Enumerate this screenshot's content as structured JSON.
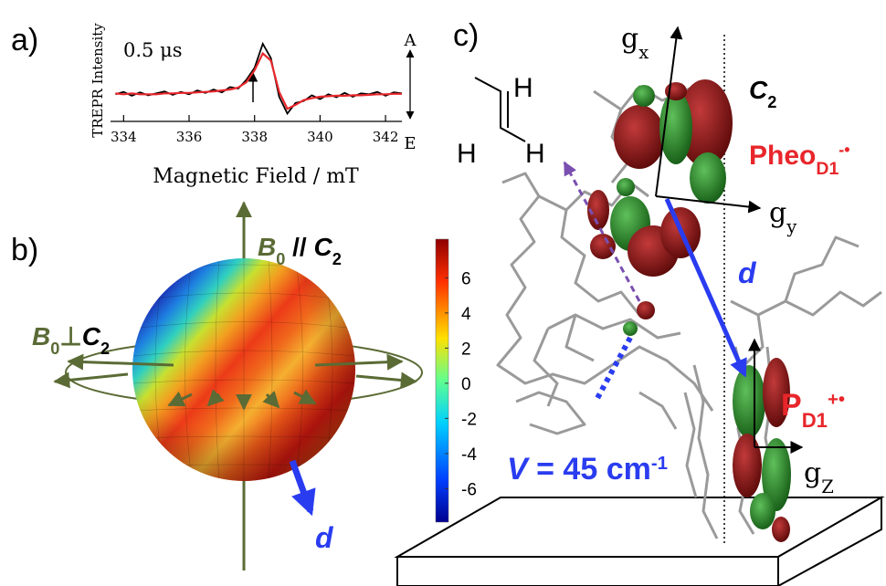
{
  "panel_labels": [
    "a)",
    "b)",
    "c)"
  ],
  "chart_data": {
    "type": "line",
    "y_label": "TREPR Intensity",
    "x_label": "Magnetic Field / mT",
    "annotation": "0.5 μs",
    "right_labels": [
      "A",
      "E"
    ],
    "x": [
      333.75,
      334,
      334.25,
      334.5,
      334.75,
      335,
      335.25,
      335.5,
      335.75,
      336,
      336.25,
      336.5,
      336.75,
      337,
      337.25,
      337.5,
      337.75,
      338,
      338.25,
      338.5,
      338.75,
      339,
      339.25,
      339.5,
      339.75,
      340,
      340.25,
      340.5,
      340.75,
      341,
      341.25,
      341.5,
      341.75,
      342,
      342.25,
      342.5
    ],
    "xlim": [
      333.6,
      342.5
    ],
    "xticks": [
      334,
      336,
      338,
      340,
      342
    ],
    "ylim": [
      -0.6,
      1.2
    ],
    "series": [
      {
        "color": "#000000",
        "values": [
          0.0,
          0.05,
          -0.03,
          0.04,
          -0.02,
          0.02,
          0.06,
          -0.01,
          0.05,
          0.0,
          0.08,
          0.03,
          0.1,
          0.04,
          0.15,
          0.12,
          0.3,
          0.55,
          1.05,
          0.75,
          -0.05,
          -0.4,
          -0.18,
          -0.14,
          -0.02,
          -0.1,
          0.0,
          -0.06,
          0.03,
          -0.05,
          0.02,
          0.0,
          0.05,
          -0.03,
          0.04,
          0.02
        ]
      },
      {
        "color": "#e8262b",
        "values": [
          0.02,
          0.0,
          0.02,
          0.0,
          0.0,
          0.0,
          0.02,
          0.02,
          0.03,
          0.03,
          0.04,
          0.05,
          0.06,
          0.08,
          0.1,
          0.14,
          0.25,
          0.5,
          0.85,
          0.7,
          0.05,
          -0.3,
          -0.22,
          -0.12,
          -0.08,
          -0.05,
          -0.04,
          -0.03,
          -0.03,
          -0.02,
          -0.02,
          -0.01,
          0.0,
          0.0,
          0.01,
          0.01
        ]
      }
    ]
  },
  "panel_b": {
    "parallel_label": {
      "italic": "B",
      "sub": "0",
      "text": " // ",
      "italic2": "C",
      "sub2": "2"
    },
    "perpendicular_label": {
      "italic": "B",
      "sub": "0",
      "text": "⊥",
      "italic2": "C",
      "sub2": "2"
    },
    "vector_label": "d",
    "colorbar": {
      "lim": [
        -7.9,
        8.2
      ],
      "ticks": [
        -6,
        -4,
        -2,
        0,
        2,
        4,
        6
      ]
    }
  },
  "panel_c": {
    "gx": {
      "text": "g",
      "sub": "x"
    },
    "gy": {
      "text": "g",
      "sub": "y"
    },
    "gz": {
      "text": "g",
      "sub": "Z"
    },
    "c2": {
      "italic": "C",
      "sub": "2"
    },
    "pheo": {
      "text": "Pheo",
      "sub": "D1",
      "sup": "-•"
    },
    "pd1": {
      "text": "P",
      "sub": "D1",
      "sup": "+•"
    },
    "vector_label": "d",
    "coupling": {
      "italic": "V",
      "text": " = 45 cm",
      "sup": "-1"
    },
    "hydrogens": [
      "H",
      "H",
      "H"
    ]
  }
}
